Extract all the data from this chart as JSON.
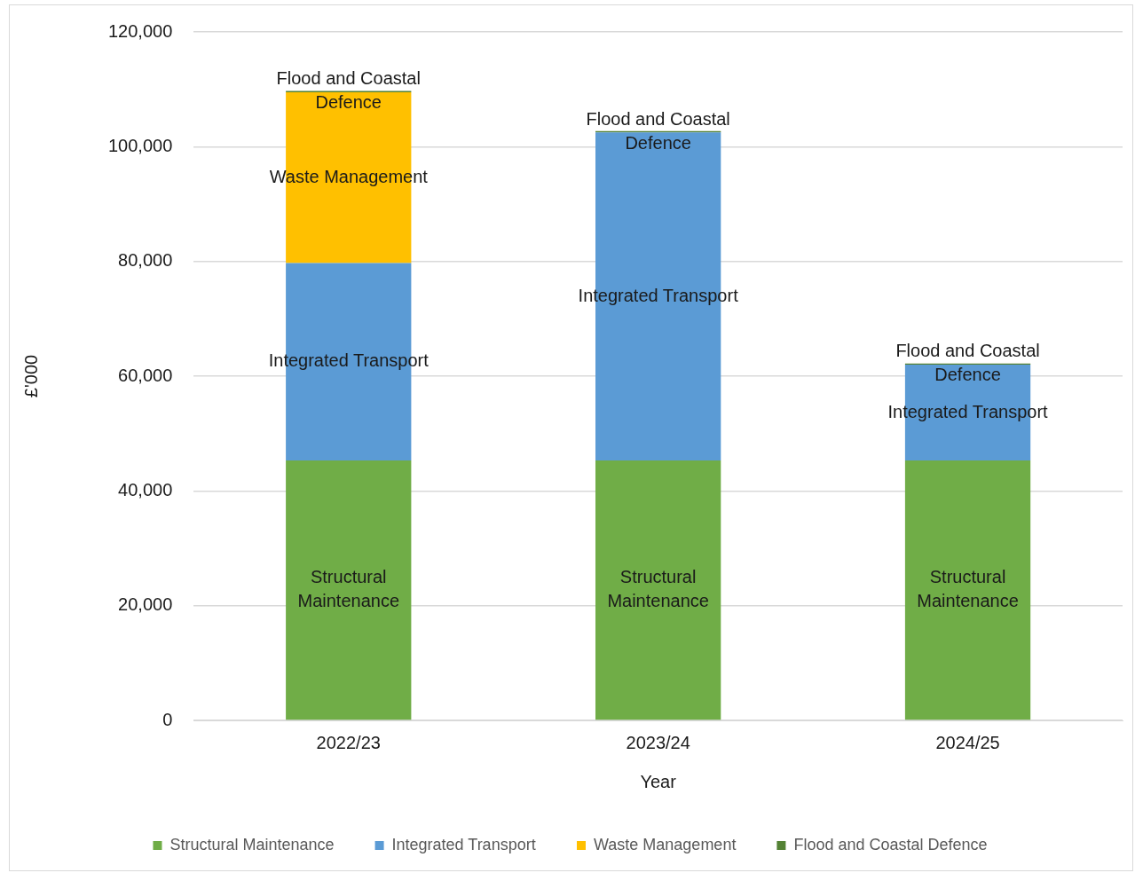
{
  "chart_data": {
    "type": "bar",
    "stacked": true,
    "xlabel": "Year",
    "ylabel": "£'000",
    "categories": [
      "2022/23",
      "2023/24",
      "2024/25"
    ],
    "series": [
      {
        "name": "Structural Maintenance",
        "color": "#70ad47",
        "values": [
          45300,
          45300,
          45300
        ],
        "value_labels": [
          "Structural\nMaintenance",
          "Structural\nMaintenance",
          "Structural\nMaintenance"
        ]
      },
      {
        "name": "Integrated Transport",
        "color": "#5b9bd5",
        "values": [
          34400,
          57200,
          16700
        ],
        "value_labels": [
          "Integrated Transport",
          "Integrated Transport",
          "Integrated Transport"
        ]
      },
      {
        "name": "Waste Management",
        "color": "#ffc000",
        "values": [
          29800,
          null,
          null
        ],
        "value_labels": [
          "Waste Management",
          null,
          null
        ]
      },
      {
        "name": "Flood and Coastal Defence",
        "color": "#548235",
        "values": [
          200,
          200,
          200
        ],
        "value_labels": [
          "Flood and Coastal\nDefence",
          "Flood and Coastal\nDefence",
          "Flood and Coastal\nDefence"
        ]
      }
    ],
    "ylim": [
      0,
      120000
    ],
    "yticks": [
      {
        "value": 0,
        "label": "0"
      },
      {
        "value": 20000,
        "label": "20,000"
      },
      {
        "value": 40000,
        "label": "40,000"
      },
      {
        "value": 60000,
        "label": "60,000"
      },
      {
        "value": 80000,
        "label": "80,000"
      },
      {
        "value": 100000,
        "label": "100,000"
      },
      {
        "value": 120000,
        "label": "120,000"
      }
    ],
    "grid": "y",
    "legend": "bottom",
    "marker": "square"
  }
}
